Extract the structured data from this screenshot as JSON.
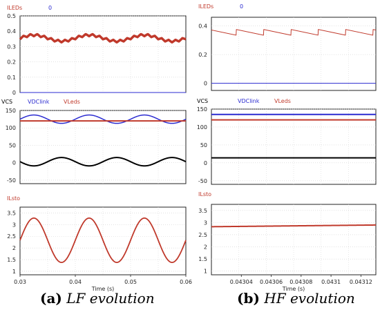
{
  "chart_data": [
    {
      "type": "line",
      "column": "a",
      "legend": [
        {
          "name": "ILEDs",
          "color": "#c0392b"
        },
        {
          "name": "0",
          "color": "#2a2ad0"
        }
      ],
      "xlim": [
        0.03,
        0.06
      ],
      "ylim": [
        0,
        0.5
      ],
      "yticks": [
        "0",
        "0.1",
        "0.2",
        "0.3",
        "0.4",
        "0.5"
      ],
      "xticks": [],
      "xlabel": "",
      "series": [
        {
          "name": "ILEDs",
          "color": "#c0392b",
          "width": 3.5,
          "kind": "ripple",
          "base": 0.355,
          "amp": 0.02,
          "freq": 100,
          "ripple": 0.015,
          "rfreq": 800
        },
        {
          "name": "0",
          "color": "#2a2ad0",
          "width": 1,
          "kind": "const",
          "value": 0
        }
      ]
    },
    {
      "type": "line",
      "column": "a",
      "legend": [
        {
          "name": "VCS",
          "color": "#000000"
        },
        {
          "name": "VDClink",
          "color": "#2a2ad0"
        },
        {
          "name": "VLeds",
          "color": "#c0392b"
        }
      ],
      "xlim": [
        0.03,
        0.06
      ],
      "ylim": [
        -60,
        150
      ],
      "yticks": [
        "-50",
        "0",
        "50",
        "100",
        "150"
      ],
      "xticks": [],
      "xlabel": "",
      "series": [
        {
          "name": "VDClink",
          "color": "#2a2ad0",
          "width": 1.5,
          "kind": "sine",
          "base": 125,
          "amp": 12,
          "freq": 100,
          "phase": 0
        },
        {
          "name": "VLeds",
          "color": "#c0392b",
          "width": 2,
          "kind": "const",
          "value": 120
        },
        {
          "name": "VCS",
          "color": "#000000",
          "width": 2,
          "kind": "sine",
          "base": 3,
          "amp": 12,
          "freq": 100,
          "phase": 3.14159
        }
      ]
    },
    {
      "type": "line",
      "column": "a",
      "legend": [
        {
          "name": "ILsto",
          "color": "#c0392b"
        }
      ],
      "xlim": [
        0.03,
        0.06
      ],
      "ylim": [
        0.85,
        3.75
      ],
      "yticks": [
        "1",
        "1.5",
        "2",
        "2.5",
        "3",
        "3.5"
      ],
      "xticks": [
        "0.03",
        "0.04",
        "0.05",
        "0.06"
      ],
      "xlabel": "Time (s)",
      "series": [
        {
          "name": "ILsto",
          "color": "#c0392b",
          "width": 1.8,
          "kind": "sine",
          "base": 2.33,
          "amp": 0.95,
          "freq": 100,
          "phase": 0
        }
      ]
    },
    {
      "type": "line",
      "column": "b",
      "legend": [
        {
          "name": "ILEDs",
          "color": "#c0392b"
        },
        {
          "name": "0",
          "color": "#2a2ad0"
        }
      ],
      "xlim": [
        0.04302,
        0.04313
      ],
      "ylim": [
        -0.05,
        0.46
      ],
      "yticks": [
        "0",
        "0.2",
        "0.4"
      ],
      "xticks": [],
      "xlabel": "",
      "series": [
        {
          "name": "ILEDs",
          "color": "#c0392b",
          "width": 1,
          "kind": "saw",
          "high": 0.375,
          "low": 0.335,
          "period": 1.83e-05,
          "offset": 1.66e-05
        },
        {
          "name": "0",
          "color": "#2a2ad0",
          "width": 1,
          "kind": "const",
          "value": 0
        }
      ]
    },
    {
      "type": "line",
      "column": "b",
      "legend": [
        {
          "name": "VCS",
          "color": "#000000"
        },
        {
          "name": "VDClink",
          "color": "#2a2ad0"
        },
        {
          "name": "VLeds",
          "color": "#c0392b"
        }
      ],
      "xlim": [
        0.04302,
        0.04313
      ],
      "ylim": [
        -60,
        150
      ],
      "yticks": [
        "-50",
        "0",
        "50",
        "100",
        "150"
      ],
      "xticks": [],
      "xlabel": "",
      "series": [
        {
          "name": "VDClink",
          "color": "#2a2ad0",
          "width": 2,
          "kind": "const",
          "value": 135
        },
        {
          "name": "VLeds",
          "color": "#c0392b",
          "width": 2,
          "kind": "const",
          "value": 120
        },
        {
          "name": "VCS",
          "color": "#000000",
          "width": 2,
          "kind": "const",
          "value": 14
        }
      ]
    },
    {
      "type": "line",
      "column": "b",
      "legend": [
        {
          "name": "ILsto",
          "color": "#c0392b"
        }
      ],
      "xlim": [
        0.04302,
        0.04313
      ],
      "ylim": [
        0.85,
        3.75
      ],
      "yticks": [
        "1",
        "1.5",
        "2",
        "2.5",
        "3",
        "3.5"
      ],
      "xticks": [
        "0.04304",
        "0.04306",
        "0.04308",
        "0.0431",
        "0.04312"
      ],
      "xlabel": "Time (s)",
      "series": [
        {
          "name": "ILsto",
          "color": "#c0392b",
          "width": 2,
          "kind": "lin",
          "y0": 2.83,
          "y1": 2.9
        }
      ]
    }
  ],
  "captions": {
    "a": {
      "tag": "(a)",
      "text": "LF evolution"
    },
    "b": {
      "tag": "(b)",
      "text": "HF evolution"
    }
  }
}
